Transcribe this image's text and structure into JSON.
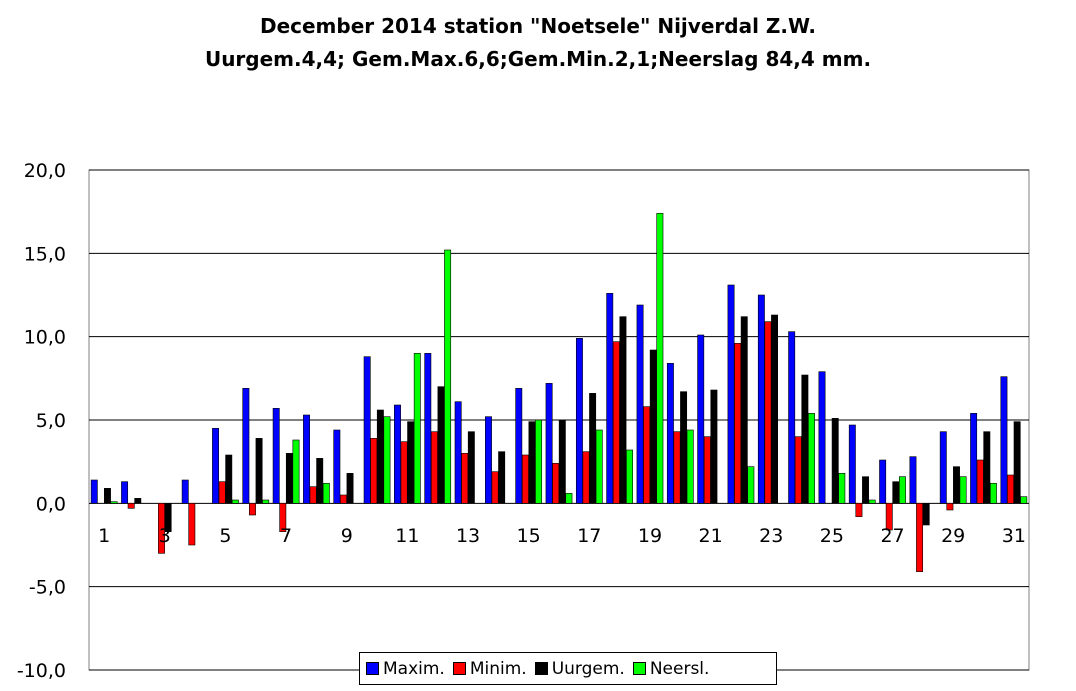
{
  "title_line1": "December 2014 station \"Noetsele\" Nijverdal Z.W.",
  "title_line2": "Uurgem.4,4; Gem.Max.6,6;Gem.Min.2,1;Neerslag  84,4 mm.",
  "colors": {
    "Maxim.": "#0000ff",
    "Minim.": "#ff0000",
    "Uurgem.": "#000000",
    "Neersl.": "#00ff00",
    "grid": "#000000",
    "plot_bg": "#ffffff"
  },
  "chart_data": {
    "type": "bar",
    "ylim": [
      -10,
      20
    ],
    "yticks": [
      "20,0",
      "15,0",
      "10,0",
      "5,0",
      "0,0",
      "-5,0",
      "-10,0"
    ],
    "ytick_values": [
      20,
      15,
      10,
      5,
      0,
      -5,
      -10
    ],
    "xtick_labels": [
      "1",
      "3",
      "5",
      "7",
      "9",
      "11",
      "13",
      "15",
      "17",
      "19",
      "21",
      "23",
      "25",
      "27",
      "29",
      "31"
    ],
    "categories": [
      1,
      2,
      3,
      4,
      5,
      6,
      7,
      8,
      9,
      10,
      11,
      12,
      13,
      14,
      15,
      16,
      17,
      18,
      19,
      20,
      21,
      22,
      23,
      24,
      25,
      26,
      27,
      28,
      29,
      30,
      31
    ],
    "grid": "horizontal",
    "legend_position": "bottom",
    "series": [
      {
        "name": "Maxim.",
        "values": [
          1.4,
          1.3,
          0.0,
          1.4,
          4.5,
          6.9,
          5.7,
          5.3,
          4.4,
          8.8,
          5.9,
          9.0,
          6.1,
          5.2,
          6.9,
          7.2,
          9.9,
          12.6,
          11.9,
          8.4,
          10.1,
          13.1,
          12.5,
          10.3,
          7.9,
          4.7,
          2.6,
          2.8,
          4.3,
          5.4,
          7.6
        ]
      },
      {
        "name": "Minim.",
        "values": [
          0.0,
          -0.3,
          -3.0,
          -2.5,
          1.3,
          -0.7,
          -1.7,
          1.0,
          0.5,
          3.9,
          3.7,
          4.3,
          3.0,
          1.9,
          2.9,
          2.4,
          3.1,
          9.7,
          5.8,
          4.3,
          4.0,
          9.6,
          10.9,
          4.0,
          0.0,
          -0.8,
          -1.6,
          -4.1,
          -0.4,
          2.6,
          1.7
        ]
      },
      {
        "name": "Uurgem.",
        "values": [
          0.9,
          0.3,
          -1.7,
          0.0,
          2.9,
          3.9,
          3.0,
          2.7,
          1.8,
          5.6,
          4.9,
          7.0,
          4.3,
          3.1,
          4.9,
          5.0,
          6.6,
          11.2,
          9.2,
          6.7,
          6.8,
          11.2,
          11.3,
          7.7,
          5.1,
          1.6,
          1.3,
          -1.3,
          2.2,
          4.3,
          4.9
        ]
      },
      {
        "name": "Neersl.",
        "values": [
          0.1,
          0.0,
          0.0,
          0.0,
          0.2,
          0.2,
          3.8,
          1.2,
          0.0,
          5.2,
          9.0,
          15.2,
          0.0,
          0.0,
          5.0,
          0.6,
          4.4,
          3.2,
          17.4,
          4.4,
          0.0,
          2.2,
          0.0,
          5.4,
          1.8,
          0.2,
          1.6,
          0.0,
          1.6,
          1.2,
          0.4
        ]
      }
    ]
  }
}
